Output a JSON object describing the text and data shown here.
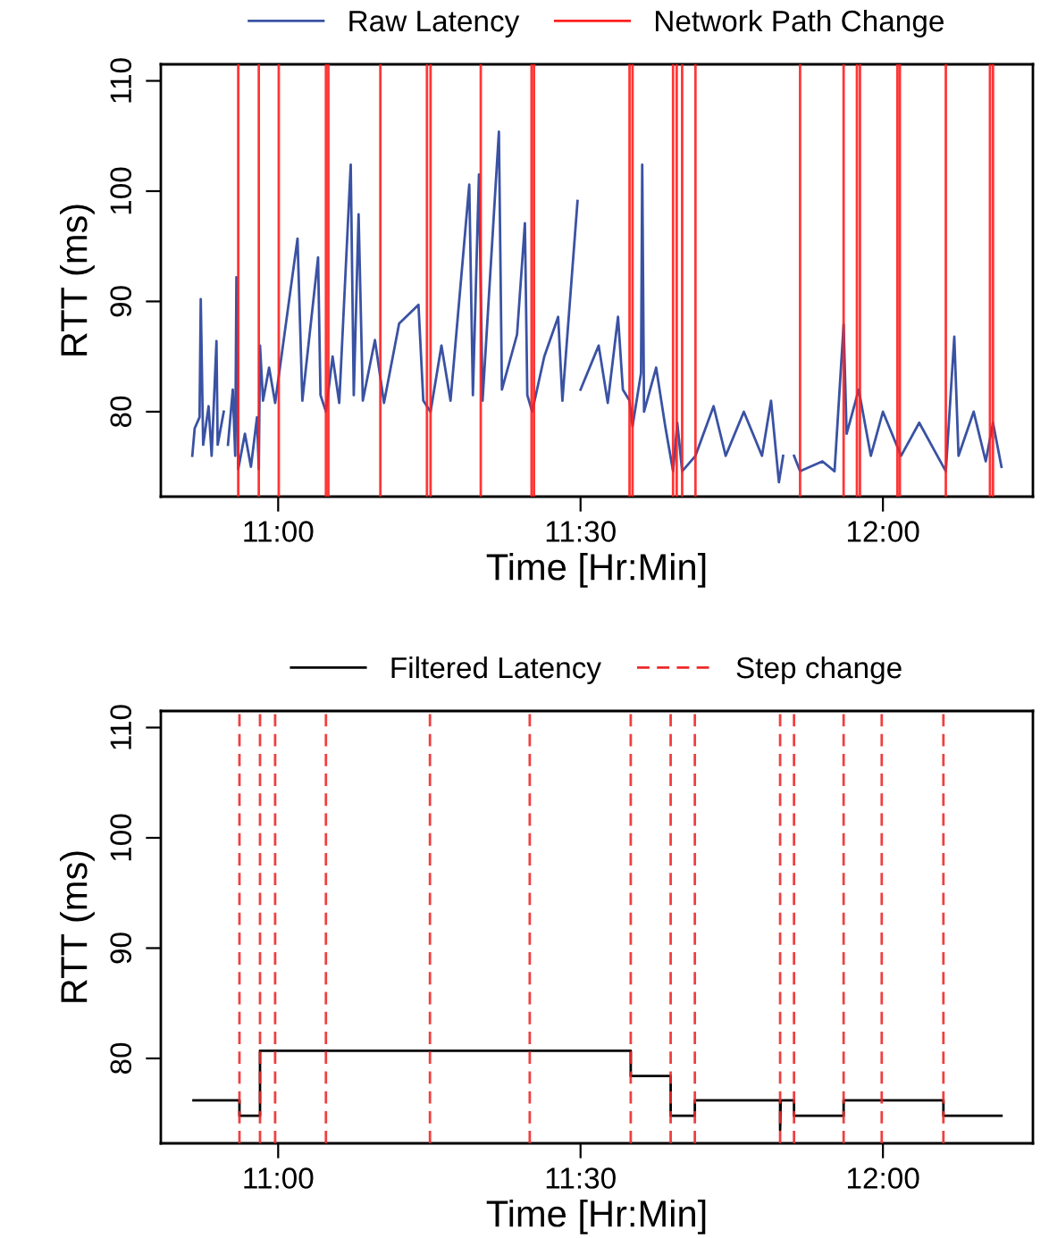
{
  "chart_data": [
    {
      "type": "line",
      "xlabel": "Time [Hr:Min]",
      "ylabel": "RTT (ms)",
      "legend": "top",
      "grid": false,
      "xlim": [
        10.806,
        12.248
      ],
      "ylim": [
        72.3,
        111.5
      ],
      "xticks": [
        {
          "value": 11.0,
          "label": "11:00"
        },
        {
          "value": 11.5,
          "label": "11:30"
        },
        {
          "value": 12.0,
          "label": "12:00"
        }
      ],
      "yticks": [
        80,
        90,
        100,
        110
      ],
      "series": [
        {
          "name": "Raw Latency",
          "color": "#3a52a3",
          "x": [
            10.858,
            10.862,
            10.87,
            10.872,
            10.876,
            10.885,
            10.89,
            10.898,
            10.9,
            10.91,
            10.915,
            10.917,
            10.925,
            10.929,
            10.931,
            10.934,
            10.945,
            10.955,
            10.965,
            10.968,
            10.97,
            10.975,
            10.985,
            10.995,
            11.032,
            11.04,
            11.066,
            11.07,
            11.079,
            11.09,
            11.101,
            11.12,
            11.125,
            11.133,
            11.14,
            11.16,
            11.175,
            11.2,
            11.232,
            11.24,
            11.252,
            11.27,
            11.285,
            11.316,
            11.322,
            11.332,
            11.338,
            11.365,
            11.37,
            11.395,
            11.408,
            11.412,
            11.42,
            11.44,
            11.463,
            11.47,
            11.495,
            11.497,
            11.5,
            11.53,
            11.545,
            11.562,
            11.57,
            11.581,
            11.586,
            11.6,
            11.602,
            11.605,
            11.625,
            11.64,
            11.653,
            11.66,
            11.668,
            11.69,
            11.72,
            11.74,
            11.77,
            11.8,
            11.815,
            11.828,
            11.835,
            11.85,
            11.853,
            11.863,
            11.9,
            11.92,
            11.935,
            11.94,
            11.96,
            11.98,
            12.0,
            12.03,
            12.06,
            12.09,
            12.104,
            12.118,
            12.125,
            12.15,
            12.17,
            12.182,
            12.196
          ],
          "values": [
            76.0,
            78.5,
            79.5,
            90.2,
            77.0,
            80.5,
            76.0,
            86.4,
            77.0,
            80.0,
            null,
            77.0,
            82.0,
            76.0,
            92.2,
            74.8,
            78.0,
            75.0,
            79.5,
            74.8,
            86.0,
            81.0,
            84.0,
            80.8,
            95.7,
            81.0,
            94.0,
            81.5,
            80.0,
            85.0,
            80.8,
            102.4,
            81.5,
            97.9,
            81.0,
            86.5,
            80.8,
            88.0,
            89.7,
            81.0,
            80.0,
            86.0,
            81.0,
            100.6,
            81.5,
            101.5,
            81.0,
            105.4,
            82.0,
            87.0,
            97.1,
            81.5,
            80.0,
            85.0,
            88.6,
            81.0,
            99.1,
            null,
            82.0,
            86.0,
            80.8,
            88.6,
            82.0,
            81.0,
            78.7,
            83.5,
            102.4,
            80.0,
            84.0,
            78.7,
            74.6,
            79.0,
            74.6,
            76.0,
            80.5,
            76.0,
            80.0,
            76.0,
            81.0,
            73.6,
            76.0,
            null,
            76.0,
            74.6,
            75.5,
            74.6,
            87.9,
            78.0,
            82.0,
            76.0,
            80.0,
            76.0,
            79.0,
            76.0,
            74.6,
            86.8,
            76.0,
            80.0,
            75.5,
            79.0,
            75.0
          ]
        }
      ],
      "ref_lines": [
        {
          "axis": "x",
          "value": 10.934,
          "label": "Network Path Change",
          "color": "#ff2020",
          "line_style": "solid"
        },
        {
          "axis": "x",
          "value": 10.968,
          "color": "#ff2020",
          "line_style": "solid"
        },
        {
          "axis": "x",
          "value": 11.001,
          "color": "#ff2020",
          "line_style": "solid"
        },
        {
          "axis": "x",
          "value": 11.079,
          "color": "#ff2020",
          "line_style": "solid"
        },
        {
          "axis": "x",
          "value": 11.083,
          "color": "#ff2020",
          "line_style": "solid"
        },
        {
          "axis": "x",
          "value": 11.169,
          "color": "#ff2020",
          "line_style": "solid"
        },
        {
          "axis": "x",
          "value": 11.246,
          "color": "#ff2020",
          "line_style": "solid"
        },
        {
          "axis": "x",
          "value": 11.252,
          "color": "#ff2020",
          "line_style": "solid"
        },
        {
          "axis": "x",
          "value": 11.335,
          "color": "#ff2020",
          "line_style": "solid"
        },
        {
          "axis": "x",
          "value": 11.419,
          "color": "#ff2020",
          "line_style": "solid"
        },
        {
          "axis": "x",
          "value": 11.423,
          "color": "#ff2020",
          "line_style": "solid"
        },
        {
          "axis": "x",
          "value": 11.581,
          "color": "#ff2020",
          "line_style": "solid"
        },
        {
          "axis": "x",
          "value": 11.586,
          "color": "#ff2020",
          "line_style": "solid"
        },
        {
          "axis": "x",
          "value": 11.653,
          "color": "#ff2020",
          "line_style": "solid"
        },
        {
          "axis": "x",
          "value": 11.659,
          "color": "#ff2020",
          "line_style": "solid"
        },
        {
          "axis": "x",
          "value": 11.668,
          "color": "#ff2020",
          "line_style": "solid"
        },
        {
          "axis": "x",
          "value": 11.69,
          "color": "#ff2020",
          "line_style": "solid"
        },
        {
          "axis": "x",
          "value": 11.863,
          "color": "#ff2020",
          "line_style": "solid"
        },
        {
          "axis": "x",
          "value": 11.935,
          "color": "#ff2020",
          "line_style": "solid"
        },
        {
          "axis": "x",
          "value": 11.957,
          "color": "#ff2020",
          "line_style": "solid"
        },
        {
          "axis": "x",
          "value": 11.962,
          "color": "#ff2020",
          "line_style": "solid"
        },
        {
          "axis": "x",
          "value": 12.024,
          "color": "#ff2020",
          "line_style": "solid"
        },
        {
          "axis": "x",
          "value": 12.028,
          "color": "#ff2020",
          "line_style": "solid"
        },
        {
          "axis": "x",
          "value": 12.104,
          "color": "#ff2020",
          "line_style": "solid"
        },
        {
          "axis": "x",
          "value": 12.177,
          "color": "#ff2020",
          "line_style": "solid"
        },
        {
          "axis": "x",
          "value": 12.182,
          "color": "#ff2020",
          "line_style": "solid"
        }
      ]
    },
    {
      "type": "line",
      "xlabel": "Time [Hr:Min]",
      "ylabel": "RTT (ms)",
      "legend": "top",
      "grid": false,
      "xlim": [
        10.806,
        12.248
      ],
      "ylim": [
        72.3,
        111.5
      ],
      "xticks": [
        {
          "value": 11.0,
          "label": "11:00"
        },
        {
          "value": 11.5,
          "label": "11:30"
        },
        {
          "value": 12.0,
          "label": "12:00"
        }
      ],
      "yticks": [
        80,
        90,
        100,
        110
      ],
      "series": [
        {
          "name": "Filtered Latency",
          "color": "#000000",
          "x": [
            10.86,
            10.936,
            10.936,
            10.97,
            10.97,
            11.583,
            11.583,
            11.649,
            11.649,
            11.689,
            11.689,
            11.83,
            11.83,
            11.831,
            11.853,
            11.853,
            11.935,
            11.935,
            12.1,
            12.1,
            12.196
          ],
          "values": [
            76.2,
            76.2,
            74.8,
            74.8,
            80.7,
            80.7,
            78.4,
            78.4,
            74.8,
            74.8,
            76.2,
            76.2,
            73.5,
            76.2,
            76.2,
            74.8,
            74.8,
            76.2,
            76.2,
            74.8,
            74.8
          ]
        }
      ],
      "ref_lines": [
        {
          "axis": "x",
          "value": 10.936,
          "label": "Step change",
          "color": "#ee2a2a",
          "line_style": "dashed"
        },
        {
          "axis": "x",
          "value": 10.97,
          "color": "#ee2a2a",
          "line_style": "dashed"
        },
        {
          "axis": "x",
          "value": 10.995,
          "color": "#ee2a2a",
          "line_style": "dashed"
        },
        {
          "axis": "x",
          "value": 11.079,
          "color": "#ee2a2a",
          "line_style": "dashed"
        },
        {
          "axis": "x",
          "value": 11.251,
          "color": "#ee2a2a",
          "line_style": "dashed"
        },
        {
          "axis": "x",
          "value": 11.416,
          "color": "#ee2a2a",
          "line_style": "dashed"
        },
        {
          "axis": "x",
          "value": 11.583,
          "color": "#ee2a2a",
          "line_style": "dashed"
        },
        {
          "axis": "x",
          "value": 11.649,
          "color": "#ee2a2a",
          "line_style": "dashed"
        },
        {
          "axis": "x",
          "value": 11.689,
          "color": "#ee2a2a",
          "line_style": "dashed"
        },
        {
          "axis": "x",
          "value": 11.83,
          "color": "#ee2a2a",
          "line_style": "dashed"
        },
        {
          "axis": "x",
          "value": 11.853,
          "color": "#ee2a2a",
          "line_style": "dashed"
        },
        {
          "axis": "x",
          "value": 11.935,
          "color": "#ee2a2a",
          "line_style": "dashed"
        },
        {
          "axis": "x",
          "value": 11.998,
          "color": "#ee2a2a",
          "line_style": "dashed"
        },
        {
          "axis": "x",
          "value": 12.1,
          "color": "#ee2a2a",
          "line_style": "dashed"
        }
      ]
    }
  ]
}
